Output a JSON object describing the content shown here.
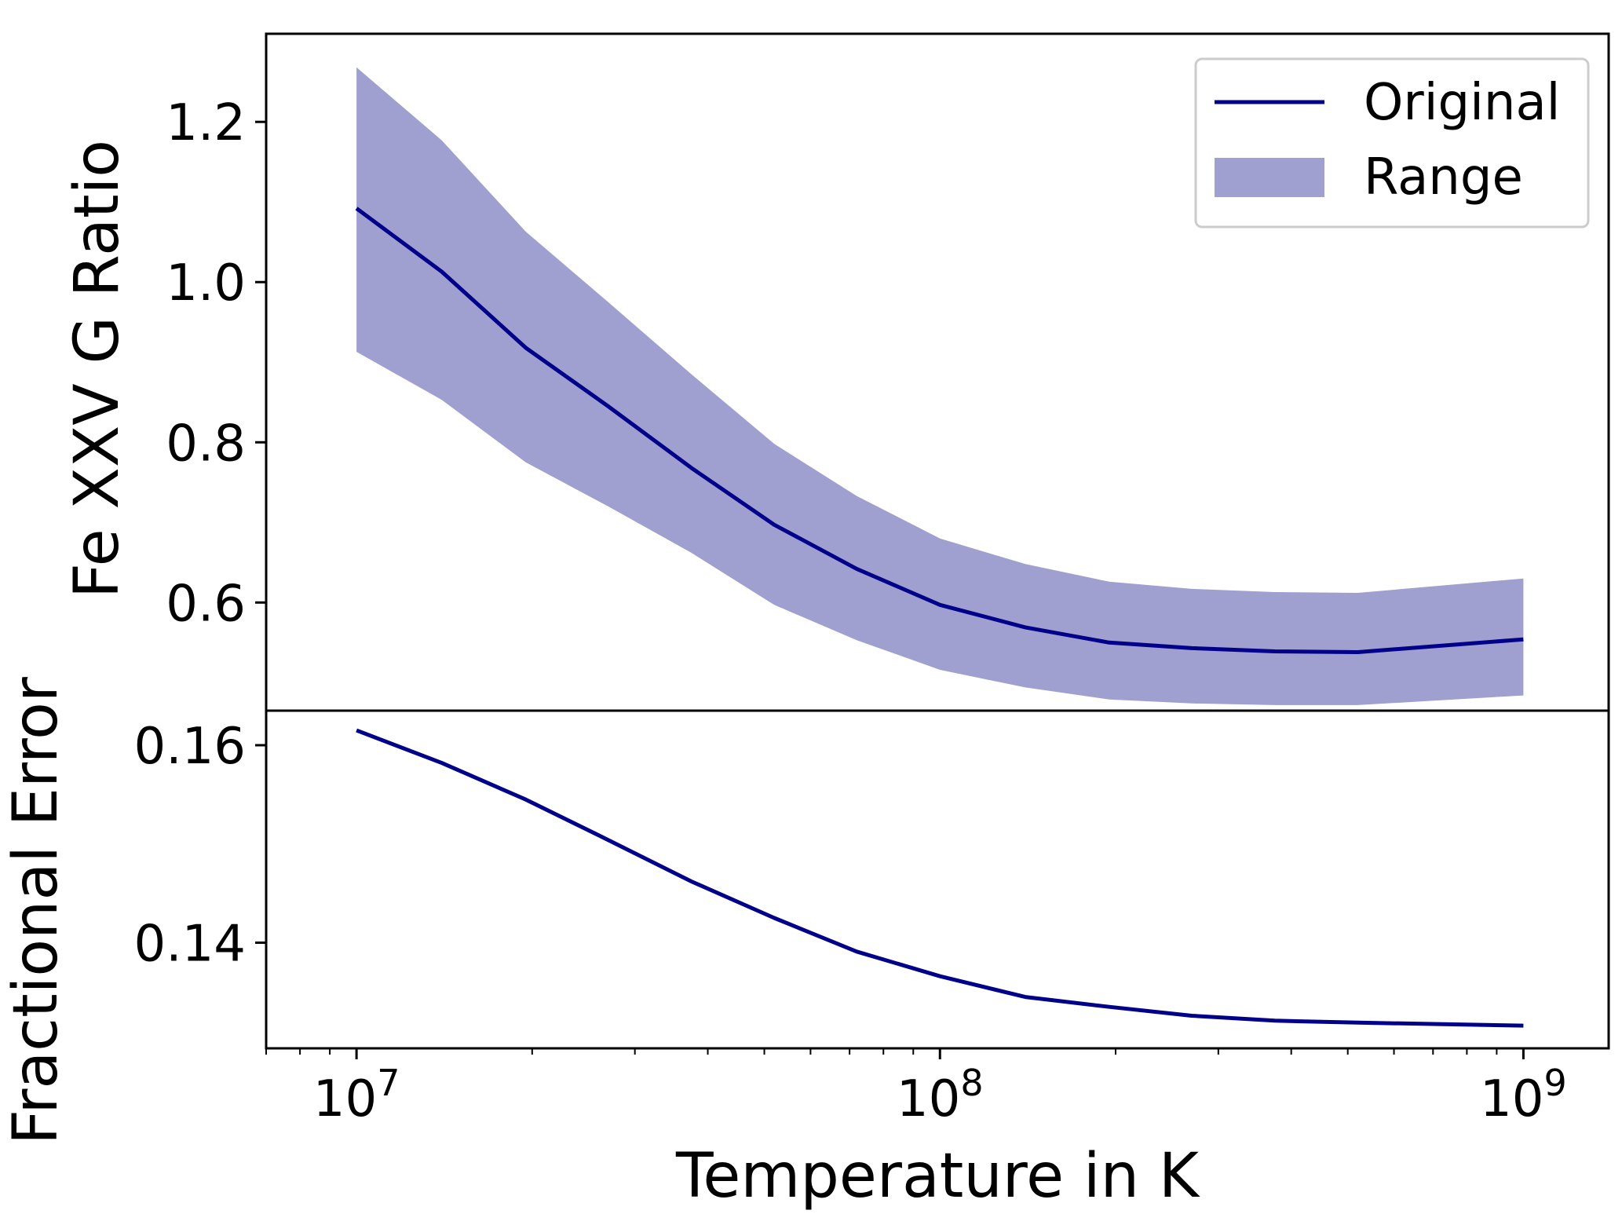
{
  "chart_data": [
    {
      "type": "line",
      "panel": "top",
      "ylabel": "Fe XXV G Ratio",
      "xscale": "log",
      "xlim": [
        7000000,
        1400000000
      ],
      "ylim": [
        0.465,
        1.31
      ],
      "x": [
        10000000,
        14000000,
        19500000,
        27000000,
        37500000,
        52000000,
        72000000,
        100000000,
        140000000,
        195000000,
        270000000,
        375000000,
        520000000,
        1000000000
      ],
      "series": [
        {
          "name": "Original",
          "kind": "line",
          "color": "#00008b",
          "values": [
            1.092,
            1.013,
            0.918,
            0.845,
            0.768,
            0.697,
            0.642,
            0.597,
            0.569,
            0.55,
            0.543,
            0.539,
            0.538,
            0.554
          ]
        },
        {
          "name": "Range",
          "kind": "band",
          "color": "#9f9fd0",
          "lower": [
            0.913,
            0.853,
            0.775,
            0.72,
            0.662,
            0.597,
            0.553,
            0.516,
            0.494,
            0.479,
            0.474,
            0.472,
            0.472,
            0.484
          ],
          "upper": [
            1.268,
            1.177,
            1.063,
            0.975,
            0.885,
            0.798,
            0.733,
            0.68,
            0.648,
            0.626,
            0.617,
            0.613,
            0.612,
            0.63
          ]
        }
      ],
      "yticks": [
        0.6,
        0.8,
        1.0,
        1.2
      ],
      "ytick_labels": [
        "0.6",
        "0.8",
        "1.0",
        "1.2"
      ],
      "legend": {
        "position": "top-right",
        "entries": [
          {
            "label": "Original",
            "kind": "line",
            "color": "#00008b"
          },
          {
            "label": "Range",
            "kind": "patch",
            "color": "#9f9fd0"
          }
        ]
      }
    },
    {
      "type": "line",
      "panel": "bottom",
      "ylabel": "Fractional Error",
      "xlabel": "Temperature in K",
      "xscale": "log",
      "xlim": [
        7000000,
        1400000000
      ],
      "ylim": [
        0.1293,
        0.1635
      ],
      "x": [
        10000000,
        14000000,
        19500000,
        27000000,
        37500000,
        52000000,
        72000000,
        100000000,
        140000000,
        195000000,
        270000000,
        375000000,
        520000000,
        1000000000
      ],
      "series": [
        {
          "name": "Fractional Error",
          "color": "#00008b",
          "values": [
            0.1615,
            0.1582,
            0.1545,
            0.1504,
            0.1462,
            0.1425,
            0.1391,
            0.1366,
            0.1345,
            0.1335,
            0.1326,
            0.1321,
            0.1319,
            0.1316
          ]
        }
      ],
      "yticks": [
        0.14,
        0.16
      ],
      "ytick_labels": [
        "0.14",
        "0.16"
      ],
      "xticks": [
        10000000,
        100000000,
        1000000000
      ],
      "xtick_labels": [
        {
          "base": "10",
          "exp": "7"
        },
        {
          "base": "10",
          "exp": "8"
        },
        {
          "base": "10",
          "exp": "9"
        }
      ]
    }
  ]
}
